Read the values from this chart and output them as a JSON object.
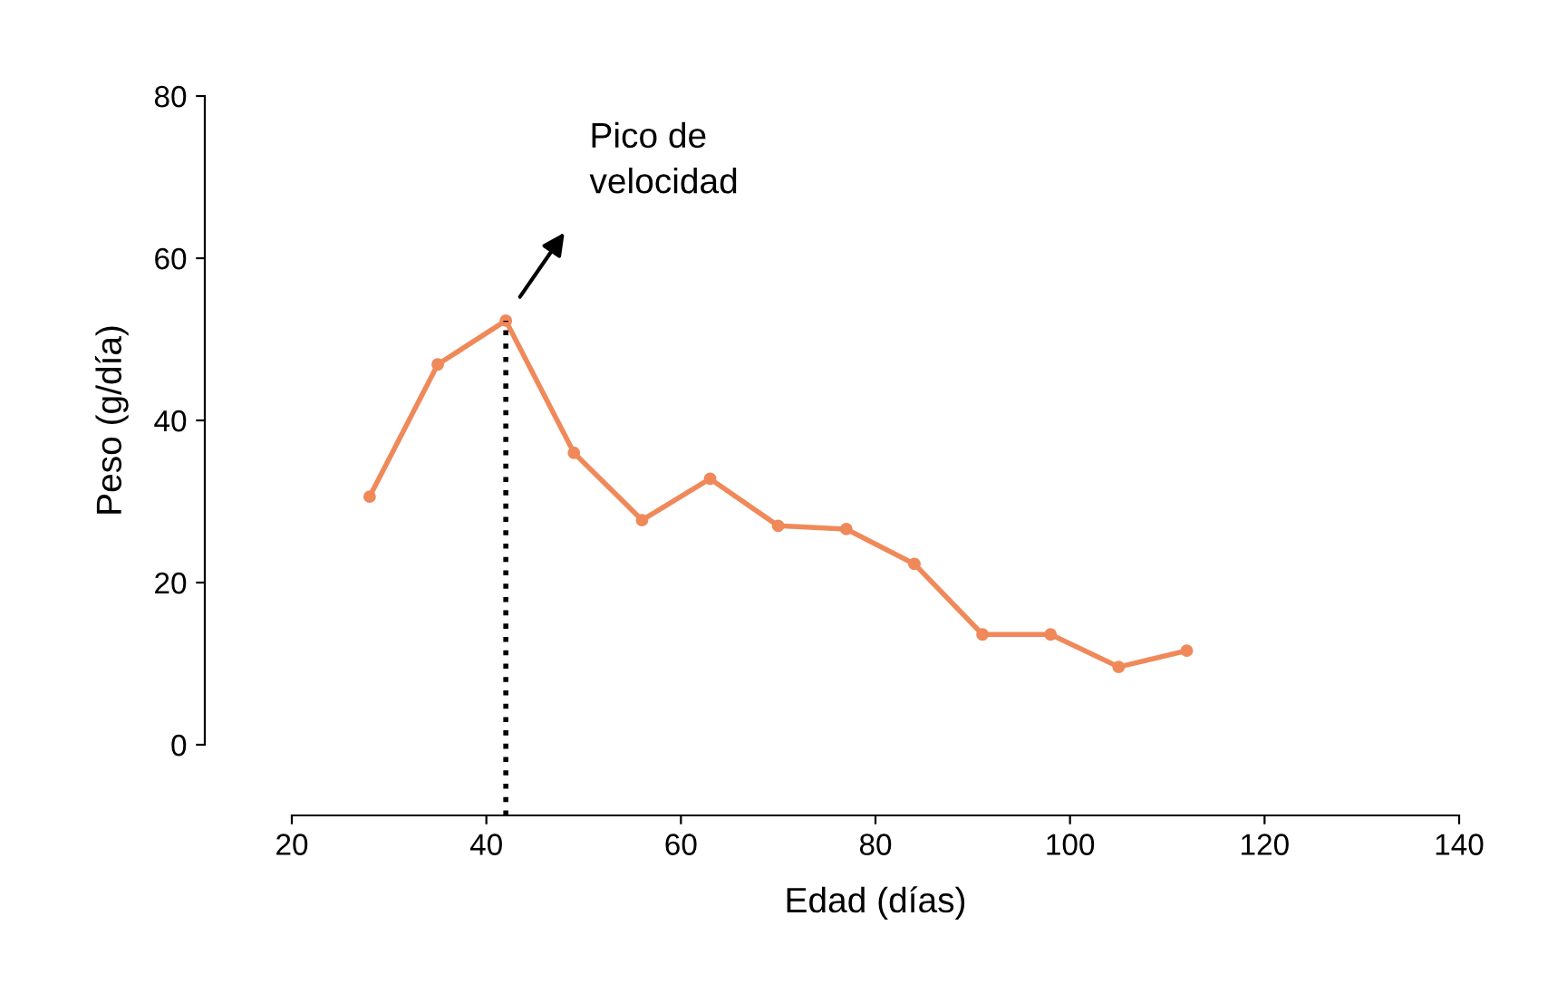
{
  "chart_data": {
    "type": "line",
    "xlabel": "Edad (días)",
    "ylabel": "Peso (g/día)",
    "x": [
      28,
      35,
      42,
      49,
      56,
      63,
      70,
      77,
      84,
      91,
      98,
      105,
      112
    ],
    "series": [
      {
        "color": "#f0895a",
        "values": [
          30.6,
          46.9,
          52.3,
          36.0,
          27.7,
          32.8,
          27.0,
          26.6,
          22.3,
          13.6,
          13.6,
          9.6,
          11.6
        ]
      }
    ],
    "marker": "circle",
    "line_style": "solid",
    "xlim": [
      20,
      140
    ],
    "xticks": [
      20,
      40,
      60,
      80,
      100,
      120,
      140
    ],
    "ylim": [
      0,
      80
    ],
    "yticks": [
      0,
      20,
      40,
      60,
      80
    ],
    "ref_lines": [
      {
        "axis": "x",
        "value": 42,
        "line_style": "dotted",
        "color": "#000000"
      }
    ],
    "annotations": [
      "Pico de\nvelocidad"
    ],
    "grid": false,
    "legend": false
  }
}
